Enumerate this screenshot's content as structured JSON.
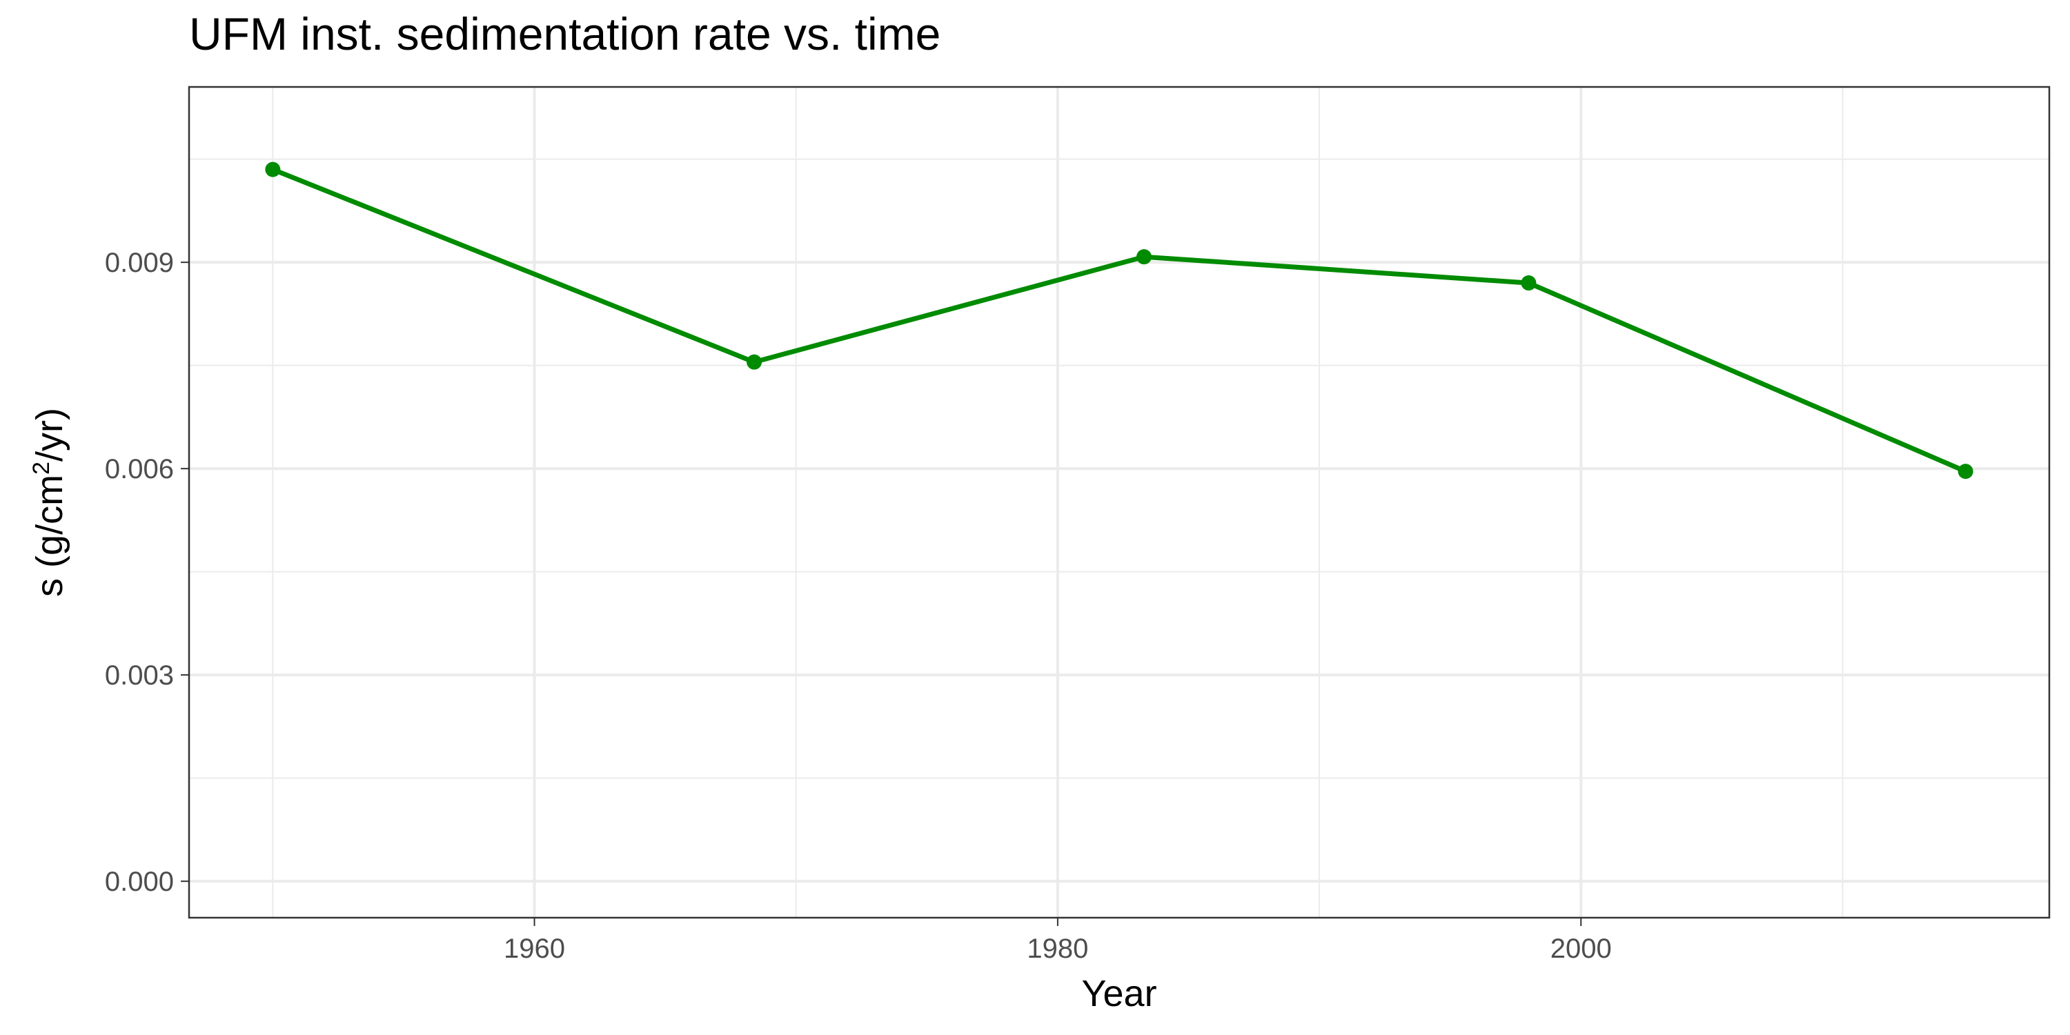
{
  "chart_data": {
    "type": "line",
    "title": "UFM inst. sedimentation rate vs. time",
    "xlabel": "Year",
    "ylabel_main": "s (g/cm",
    "ylabel_sup": "2",
    "ylabel_tail": "/yr)",
    "xlim": [
      1946.8,
      2017.9
    ],
    "ylim": [
      -0.00053,
      0.01155
    ],
    "x_ticks": [
      1960,
      1980,
      2000
    ],
    "x_tick_labels": [
      "1960",
      "1980",
      "2000"
    ],
    "y_ticks": [
      0,
      0.003,
      0.006,
      0.009
    ],
    "y_tick_labels": [
      "0.000",
      "0.003",
      "0.006",
      "0.009"
    ],
    "x_minor": [
      1950,
      1970,
      1990,
      2010
    ],
    "y_minor": [
      0.0015,
      0.0045,
      0.0075,
      0.0105
    ],
    "grid": true,
    "series": [
      {
        "color": "#008b00",
        "x": [
          1950.0,
          1968.4,
          1983.3,
          1998.0,
          2014.7
        ],
        "y": [
          0.01035,
          0.00755,
          0.00908,
          0.0087,
          0.00596
        ]
      }
    ]
  }
}
